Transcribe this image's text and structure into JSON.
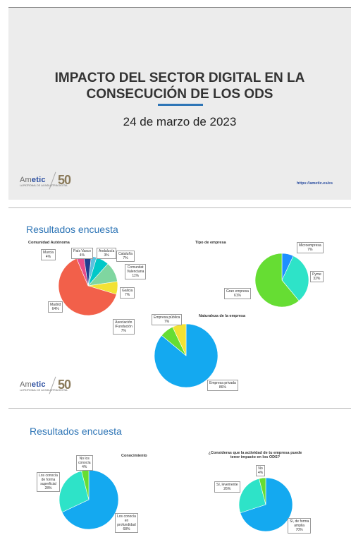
{
  "slide1": {
    "title_line1": "IMPACTO DEL SECTOR DIGITAL EN LA",
    "title_line2": "CONSECUCIÓN DE LOS ODS",
    "date": "24 de marzo de 2023",
    "url": "https://ametic.es/es"
  },
  "logo": {
    "name_a": "Am",
    "name_b": "etic",
    "tagline": "LA PATRONAL DE LA INDUSTRIA DIGITAL",
    "anniv": "50"
  },
  "slide2": {
    "heading": "Resultados encuesta"
  },
  "slide3": {
    "heading": "Resultados encuesta"
  },
  "chart_data": [
    {
      "type": "pie",
      "title": "Comunidad Autónoma",
      "categories": [
        "Andalucía",
        "Cataluña",
        "Comunitat Valenciana",
        "Galicia",
        "Madrid",
        "Murcia",
        "País Vasco"
      ],
      "values": [
        3,
        7,
        11,
        7,
        64,
        4,
        4
      ],
      "labels": [
        [
          "Andalucía",
          "3%"
        ],
        [
          "Cataluña",
          "7%"
        ],
        [
          "Comunitat",
          "Valenciana",
          "11%"
        ],
        [
          "Galicia",
          "7%"
        ],
        [
          "Madrid",
          "64%"
        ],
        [
          "Murcia",
          "4%"
        ],
        [
          "País Vasco",
          "4%"
        ]
      ],
      "colors": [
        "#5bc0de",
        "#00c8c8",
        "#7fd6a0",
        "#f2e234",
        "#f2604a",
        "#e84d8a",
        "#1f3f8f"
      ]
    },
    {
      "type": "pie",
      "title": "Tipo de empresa",
      "categories": [
        "Microempresa",
        "Pyme",
        "Gran empresa"
      ],
      "values": [
        7,
        32,
        61
      ],
      "labels": [
        [
          "Microempresa",
          "7%"
        ],
        [
          "Pyme",
          "32%"
        ],
        [
          "Gran empresa",
          "61%"
        ]
      ],
      "colors": [
        "#1e90ff",
        "#2ee3c8",
        "#66dd33"
      ]
    },
    {
      "type": "pie",
      "title": "Naturaleza de la empresa",
      "categories": [
        "Empresa privada",
        "Asociación /Fundación",
        "Empresa pública"
      ],
      "values": [
        86,
        7,
        7
      ],
      "labels": [
        [
          "Empresa privada",
          "86%"
        ],
        [
          "Asociación",
          "/Fundación",
          "7%"
        ],
        [
          "Empresa pública",
          "7%"
        ]
      ],
      "colors": [
        "#14a9f0",
        "#66dd33",
        "#f2e234"
      ]
    },
    {
      "type": "pie",
      "title": "Conocimiento",
      "categories": [
        "Los conocía en profundidad",
        "Los conocía de forma superficial",
        "No los conocía"
      ],
      "values": [
        68,
        28,
        4
      ],
      "labels": [
        [
          "Los conocía",
          "en",
          "profundidad",
          "68%"
        ],
        [
          "Los conocía",
          "de forma",
          "superficial",
          "28%"
        ],
        [
          "No los",
          "conocía",
          "4%"
        ]
      ],
      "colors": [
        "#14a9f0",
        "#2ee3c8",
        "#66dd33"
      ]
    },
    {
      "type": "pie",
      "title": "¿Consideras que la actividad de tu empresa puede tener impacto en los ODS?",
      "categories": [
        "Sí, de forma amplia",
        "Sí, levemente",
        "No"
      ],
      "values": [
        70,
        26,
        4
      ],
      "labels": [
        [
          "Sí, de forma",
          "amplia",
          "70%"
        ],
        [
          "Sí, levemente",
          "26%"
        ],
        [
          "No",
          "4%"
        ]
      ],
      "colors": [
        "#14a9f0",
        "#2ee3c8",
        "#66dd33"
      ]
    }
  ]
}
